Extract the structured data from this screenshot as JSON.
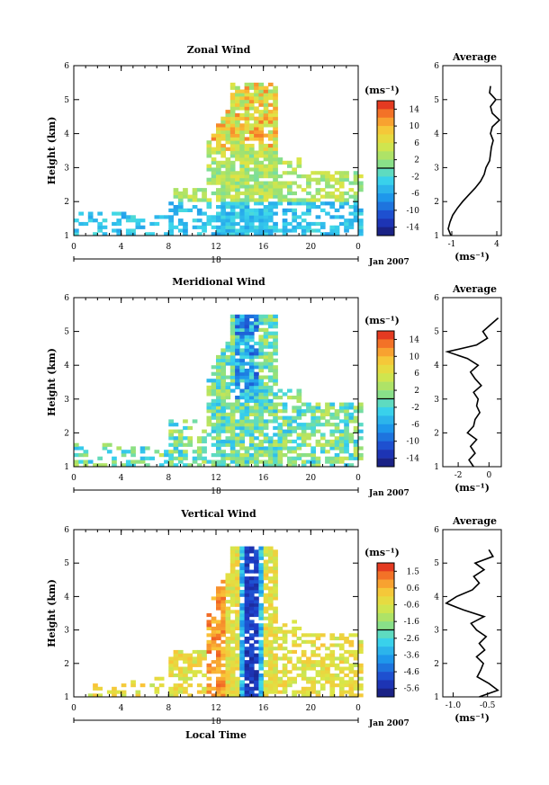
{
  "chart_data": [
    {
      "type": "heatmap",
      "title": "Zonal Wind",
      "xlabel": "",
      "ylabel": "Height (km)",
      "xlim": [
        0,
        24
      ],
      "ylim": [
        1,
        6
      ],
      "x_ticks": [
        "0",
        "4",
        "8",
        "12",
        "16",
        "20",
        "0"
      ],
      "y_ticks": [
        "1",
        "2",
        "3",
        "4",
        "5",
        "6"
      ],
      "day_label": "18",
      "date_label": "Jan 2007",
      "colorbar": {
        "unit": "(ms⁻¹)",
        "ticks": [
          "14",
          "10",
          "6",
          "2",
          "-2",
          "-6",
          "-10",
          "-14"
        ],
        "range": [
          -14,
          14
        ]
      },
      "profile": {
        "title": "Average",
        "xlabel": "(ms⁻¹)",
        "x_ticks": [
          "-1",
          "4"
        ],
        "xlim": [
          -2,
          4.5
        ],
        "heights": [
          1.0,
          1.2,
          1.4,
          1.6,
          1.8,
          2.0,
          2.2,
          2.4,
          2.6,
          2.8,
          3.0,
          3.2,
          3.4,
          3.6,
          3.8,
          4.0,
          4.2,
          4.4,
          4.6,
          4.8,
          5.0,
          5.2,
          5.4
        ],
        "values": [
          -1.1,
          -1.4,
          -1.2,
          -0.9,
          -0.4,
          0.2,
          0.9,
          1.6,
          2.2,
          2.6,
          2.8,
          3.2,
          3.3,
          3.4,
          3.6,
          3.3,
          3.5,
          4.3,
          3.5,
          3.3,
          3.9,
          3.2,
          3.3
        ]
      }
    },
    {
      "type": "heatmap",
      "title": "Meridional Wind",
      "xlabel": "",
      "ylabel": "Height (km)",
      "xlim": [
        0,
        24
      ],
      "ylim": [
        1,
        6
      ],
      "x_ticks": [
        "0",
        "4",
        "8",
        "12",
        "16",
        "20",
        "0"
      ],
      "y_ticks": [
        "1",
        "2",
        "3",
        "4",
        "5",
        "6"
      ],
      "day_label": "18",
      "date_label": "Jan 2007",
      "colorbar": {
        "unit": "(ms⁻¹)",
        "ticks": [
          "14",
          "10",
          "6",
          "2",
          "-2",
          "-6",
          "-10",
          "-14"
        ],
        "range": [
          -14,
          14
        ]
      },
      "profile": {
        "title": "Average",
        "xlabel": "(ms⁻¹)",
        "x_ticks": [
          "-2",
          "0"
        ],
        "xlim": [
          -3,
          0.8
        ],
        "heights": [
          1.0,
          1.2,
          1.4,
          1.6,
          1.8,
          2.0,
          2.2,
          2.4,
          2.6,
          2.8,
          3.0,
          3.2,
          3.4,
          3.6,
          3.8,
          4.0,
          4.2,
          4.4,
          4.6,
          4.8,
          5.0,
          5.2,
          5.4
        ],
        "values": [
          -1.0,
          -1.3,
          -0.9,
          -1.2,
          -0.8,
          -1.4,
          -1.0,
          -0.9,
          -0.6,
          -0.8,
          -0.7,
          -1.0,
          -0.5,
          -0.9,
          -1.2,
          -0.7,
          -1.4,
          -2.7,
          -0.8,
          -0.1,
          -0.4,
          0.1,
          0.6
        ]
      }
    },
    {
      "type": "heatmap",
      "title": "Vertical Wind",
      "xlabel": "Local Time",
      "ylabel": "Height (km)",
      "xlim": [
        0,
        24
      ],
      "ylim": [
        1,
        6
      ],
      "x_ticks": [
        "0",
        "4",
        "8",
        "12",
        "16",
        "20",
        "0"
      ],
      "y_ticks": [
        "1",
        "2",
        "3",
        "4",
        "5",
        "6"
      ],
      "day_label": "18",
      "date_label": "Jan 2007",
      "colorbar": {
        "unit": "(ms⁻¹)",
        "ticks": [
          "1.5",
          "0.6",
          "-0.6",
          "-1.6",
          "-2.6",
          "-3.6",
          "-4.6",
          "-5.6"
        ],
        "range": [
          -5.6,
          1.5
        ]
      },
      "profile": {
        "title": "Average",
        "xlabel": "(ms⁻¹)",
        "x_ticks": [
          "-1.0",
          "-0.5"
        ],
        "xlim": [
          -1.15,
          -0.3
        ],
        "heights": [
          1.0,
          1.2,
          1.4,
          1.6,
          1.8,
          2.0,
          2.2,
          2.4,
          2.6,
          2.8,
          3.0,
          3.2,
          3.4,
          3.6,
          3.8,
          4.0,
          4.2,
          4.4,
          4.6,
          4.8,
          5.0,
          5.2,
          5.4
        ],
        "values": [
          -0.62,
          -0.35,
          -0.48,
          -0.65,
          -0.6,
          -0.56,
          -0.66,
          -0.54,
          -0.62,
          -0.52,
          -0.66,
          -0.74,
          -0.55,
          -0.85,
          -1.1,
          -0.95,
          -0.72,
          -0.62,
          -0.7,
          -0.55,
          -0.68,
          -0.42,
          -0.48
        ]
      }
    }
  ]
}
